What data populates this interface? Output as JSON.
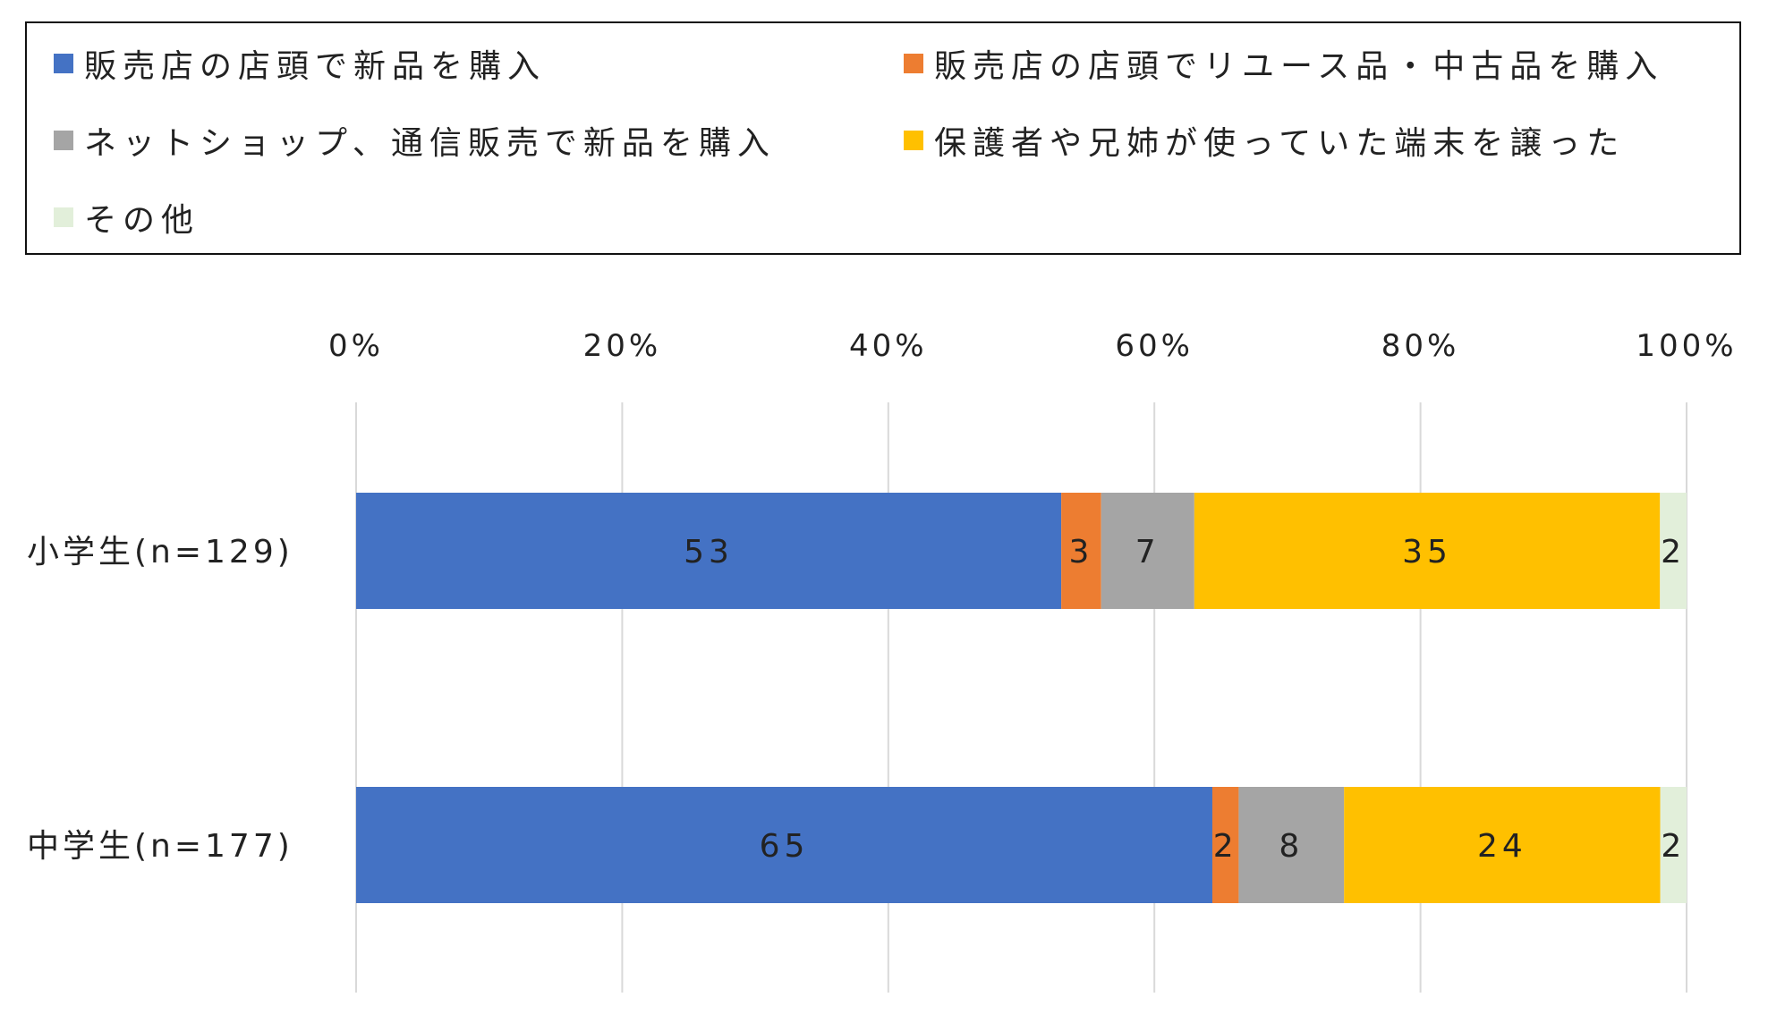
{
  "chart_data": {
    "type": "bar",
    "orientation": "horizontal",
    "stacked": "percent",
    "categories": [
      "小学生(n=129)",
      "中学生(n=177)"
    ],
    "series": [
      {
        "name": "販売店の店頭で新品を購入",
        "color": "#4472C4",
        "values": [
          53,
          65
        ],
        "labels": [
          "53",
          "65"
        ]
      },
      {
        "name": "販売店の店頭でリユース品・中古品を購入",
        "color": "#ED7D31",
        "values": [
          3,
          2
        ],
        "labels": [
          "3",
          "2"
        ]
      },
      {
        "name": "ネットショップ、通信販売で新品を購入",
        "color": "#A5A5A5",
        "values": [
          7,
          8
        ],
        "labels": [
          "7",
          "8"
        ]
      },
      {
        "name": "保護者や兄姉が使っていた端末を譲った",
        "color": "#FFC000",
        "values": [
          35,
          24
        ],
        "labels": [
          "35",
          "24"
        ]
      },
      {
        "name": "その他",
        "color": "#E2EFDA",
        "values": [
          2,
          2
        ],
        "labels": [
          "2",
          "2"
        ]
      }
    ],
    "x_axis": {
      "ticks": [
        "0%",
        "20%",
        "40%",
        "60%",
        "80%",
        "100%"
      ],
      "tick_values": [
        0,
        20,
        40,
        60,
        80,
        100
      ],
      "range": [
        0,
        100
      ],
      "position": "top"
    },
    "grid": true,
    "legend_position": "top"
  }
}
